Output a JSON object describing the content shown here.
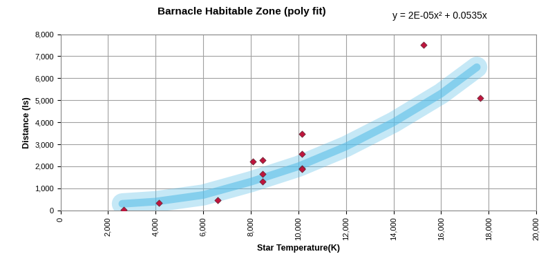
{
  "chart_data": {
    "type": "scatter",
    "title": "Barnacle Habitable Zone (poly fit)",
    "annotation": "y = 2E-05x² + 0.0535x",
    "x_label": "Star Temperature(K)",
    "y_label": "Distance (ls)",
    "series": [
      {
        "type": "line",
        "color": "#5bbfe8",
        "line_style": "solid",
        "x": [
          2600,
          4000,
          6000,
          8000,
          10000,
          12000,
          14000,
          16000,
          17500
        ],
        "values": [
          300,
          400,
          700,
          1300,
          2000,
          2900,
          4000,
          5300,
          6500
        ]
      },
      {
        "type": "scatter",
        "color": "#c0143c",
        "marker": "diamond",
        "x": [
          2650,
          4150,
          6600,
          8100,
          8500,
          8500,
          8500,
          10150,
          10150,
          10150,
          10150,
          15250,
          17650
        ],
        "values": [
          30,
          330,
          460,
          2220,
          2290,
          1660,
          1310,
          3480,
          2550,
          1900,
          1870,
          7530,
          5100
        ]
      }
    ],
    "xlim": [
      0,
      20000
    ],
    "xticks": [
      0,
      {
        "value": 2000,
        "label": "2,000"
      },
      {
        "value": 4000,
        "label": "4,000"
      },
      {
        "value": 6000,
        "label": "6,000"
      },
      {
        "value": 8000,
        "label": "8,000"
      },
      {
        "value": 10000,
        "label": "10,000"
      },
      {
        "value": 12000,
        "label": "12,000"
      },
      {
        "value": 14000,
        "label": "14,000"
      },
      {
        "value": 16000,
        "label": "16,000"
      },
      {
        "value": 18000,
        "label": "18,000"
      },
      {
        "value": 20000,
        "label": "20,000"
      }
    ],
    "ylim": [
      0,
      8000
    ],
    "yticks": [
      0,
      {
        "value": 1000,
        "label": "1,000"
      },
      {
        "value": 2000,
        "label": "2,000"
      },
      {
        "value": 3000,
        "label": "3,000"
      },
      {
        "value": 4000,
        "label": "4,000"
      },
      {
        "value": 5000,
        "label": "5,000"
      },
      {
        "value": 6000,
        "label": "6,000"
      },
      {
        "value": 7000,
        "label": "7,000"
      },
      {
        "value": 8000,
        "label": "8,000"
      }
    ],
    "grid": true
  }
}
